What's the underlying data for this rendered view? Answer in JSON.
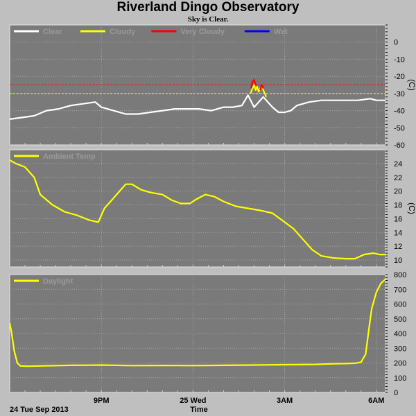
{
  "header": {
    "title": "Riverland Dingo Observatory",
    "status": "Sky is Clear."
  },
  "footer": {
    "date_label": "24 Tue Sep 2013",
    "xlabel": "Time"
  },
  "x_ticks": [
    {
      "label": "9PM",
      "hour": 21
    },
    {
      "label": "25 Wed",
      "hour": 24
    },
    {
      "label": "3AM",
      "hour": 27
    },
    {
      "label": "6AM",
      "hour": 30
    }
  ],
  "chart_data": [
    {
      "type": "line",
      "x_unit": "hours since 00:00 on 24 Tue Sep 2013",
      "xlim": [
        18.0,
        30.3
      ],
      "ylim": [
        -60,
        10
      ],
      "yticks": [
        0,
        -10,
        -20,
        -30,
        -40,
        -50,
        -60
      ],
      "ylabel": "(C)",
      "legend": [
        {
          "name": "Clear",
          "color": "#ffffff"
        },
        {
          "name": "Cloudy",
          "color": "#ffff00"
        },
        {
          "name": "Very Cloudy",
          "color": "#ff0000"
        },
        {
          "name": "Wet",
          "color": "#0000ff"
        }
      ],
      "thresholds": [
        {
          "value": -25,
          "color": "#ff0000"
        },
        {
          "value": -30,
          "color": "#ffff00"
        }
      ],
      "series": [
        {
          "name": "Clear",
          "color": "#ffffff",
          "x": [
            18.0,
            18.4,
            18.8,
            19.2,
            19.6,
            20.0,
            20.4,
            20.8,
            21.0,
            21.4,
            21.8,
            22.2,
            22.6,
            23.0,
            23.4,
            23.8,
            24.2,
            24.6,
            25.0,
            25.3,
            25.6,
            25.8,
            26.0,
            26.3,
            26.6,
            26.8,
            27.0,
            27.2,
            27.4,
            27.6,
            27.8,
            28.2,
            28.6,
            29.0,
            29.4,
            29.8,
            30.0,
            30.3
          ],
          "values": [
            -45,
            -44,
            -43,
            -40,
            -39,
            -37,
            -36,
            -35,
            -38,
            -40,
            -42,
            -42,
            -41,
            -40,
            -39,
            -39,
            -39,
            -40,
            -38,
            -38,
            -37,
            -31,
            -38,
            -32,
            -38,
            -41,
            -41,
            -40,
            -37,
            -36,
            -35,
            -34,
            -34,
            -34,
            -34,
            -33,
            -34,
            -34
          ]
        },
        {
          "name": "Cloudy",
          "color": "#ffff00",
          "x": [
            25.88,
            25.95,
            26.0,
            26.05,
            26.1,
            26.15,
            26.2,
            26.25,
            26.3,
            26.35,
            26.4
          ],
          "values": [
            -30,
            -27,
            -25,
            -28,
            -26,
            -29,
            -27,
            -26,
            -28,
            -30,
            -32
          ]
        },
        {
          "name": "Very Cloudy",
          "color": "#ff0000",
          "x": [
            25.9,
            25.95,
            26.0,
            26.05
          ],
          "values": [
            -27,
            -23,
            -22,
            -25
          ]
        },
        {
          "name": "Very Cloudy",
          "color": "#ff0000",
          "x": [
            26.2,
            26.25,
            26.3
          ],
          "values": [
            -28,
            -25,
            -27
          ]
        }
      ]
    },
    {
      "type": "line",
      "x_unit": "hours since 00:00 on 24 Tue Sep 2013",
      "xlim": [
        18.0,
        30.3
      ],
      "ylim": [
        9,
        26
      ],
      "yticks": [
        10,
        12,
        14,
        16,
        18,
        20,
        22,
        24
      ],
      "ylabel": "(C)",
      "legend": [
        {
          "name": "Ambient Temp",
          "color": "#ffff00"
        }
      ],
      "series": [
        {
          "name": "Ambient Temp",
          "color": "#ffff00",
          "x": [
            18.0,
            18.2,
            18.5,
            18.8,
            19.0,
            19.4,
            19.8,
            20.2,
            20.6,
            20.9,
            21.1,
            21.3,
            21.6,
            21.8,
            22.0,
            22.3,
            22.6,
            23.0,
            23.3,
            23.6,
            23.9,
            24.1,
            24.4,
            24.7,
            25.0,
            25.4,
            25.8,
            26.2,
            26.6,
            27.0,
            27.3,
            27.6,
            27.9,
            28.2,
            28.6,
            29.0,
            29.3,
            29.6,
            29.9,
            30.1,
            30.3
          ],
          "values": [
            24.5,
            24.0,
            23.5,
            22.0,
            19.5,
            18.0,
            17.0,
            16.5,
            15.8,
            15.5,
            17.5,
            18.5,
            20.0,
            21.0,
            21.0,
            20.2,
            19.8,
            19.5,
            18.7,
            18.2,
            18.2,
            18.8,
            19.5,
            19.2,
            18.5,
            17.8,
            17.5,
            17.2,
            16.8,
            15.5,
            14.5,
            13.0,
            11.5,
            10.6,
            10.3,
            10.2,
            10.2,
            10.8,
            11.0,
            10.8,
            10.8
          ]
        }
      ]
    },
    {
      "type": "line",
      "x_unit": "hours since 00:00 on 24 Tue Sep 2013",
      "xlim": [
        18.0,
        30.3
      ],
      "ylim": [
        0,
        800
      ],
      "yticks": [
        0,
        100,
        200,
        300,
        400,
        500,
        600,
        700,
        800
      ],
      "ylabel": "",
      "legend": [
        {
          "name": "Daylight",
          "color": "#ffff00"
        }
      ],
      "series": [
        {
          "name": "Daylight",
          "color": "#ffff00",
          "x": [
            18.0,
            18.05,
            18.15,
            18.25,
            18.35,
            18.6,
            19.0,
            20.0,
            21.0,
            22.0,
            23.0,
            24.0,
            25.0,
            26.0,
            27.0,
            28.0,
            28.5,
            29.0,
            29.3,
            29.5,
            29.65,
            29.75,
            29.85,
            30.0,
            30.15,
            30.3
          ],
          "values": [
            470,
            420,
            280,
            200,
            180,
            178,
            180,
            184,
            186,
            182,
            183,
            182,
            184,
            186,
            188,
            190,
            194,
            196,
            198,
            205,
            260,
            420,
            570,
            680,
            740,
            770
          ]
        }
      ]
    }
  ]
}
